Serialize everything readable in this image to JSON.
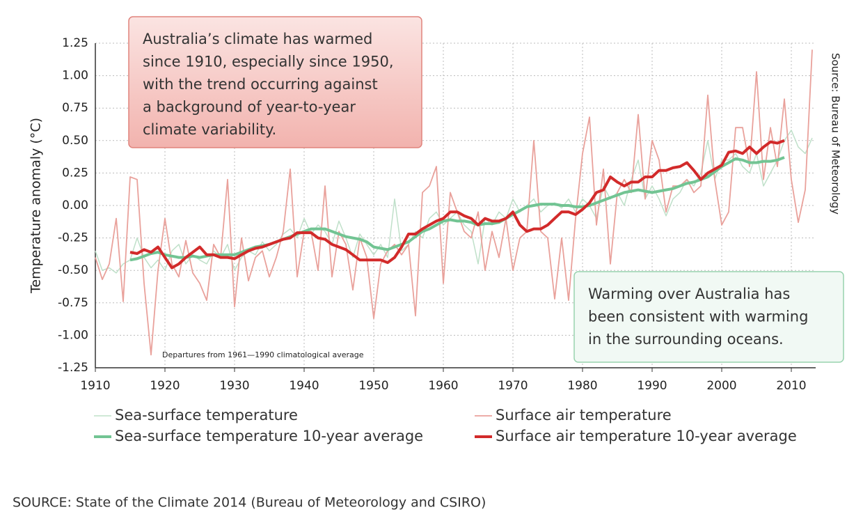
{
  "chart_data": {
    "type": "line",
    "y_label": "Temperature anomaly (°C)",
    "x": [
      1910,
      1911,
      1912,
      1913,
      1914,
      1915,
      1916,
      1917,
      1918,
      1919,
      1920,
      1921,
      1922,
      1923,
      1924,
      1925,
      1926,
      1927,
      1928,
      1929,
      1930,
      1931,
      1932,
      1933,
      1934,
      1935,
      1936,
      1937,
      1938,
      1939,
      1940,
      1941,
      1942,
      1943,
      1944,
      1945,
      1946,
      1947,
      1948,
      1949,
      1950,
      1951,
      1952,
      1953,
      1954,
      1955,
      1956,
      1957,
      1958,
      1959,
      1960,
      1961,
      1962,
      1963,
      1964,
      1965,
      1966,
      1967,
      1968,
      1969,
      1970,
      1971,
      1972,
      1973,
      1974,
      1975,
      1976,
      1977,
      1978,
      1979,
      1980,
      1981,
      1982,
      1983,
      1984,
      1985,
      1986,
      1987,
      1988,
      1989,
      1990,
      1991,
      1992,
      1993,
      1994,
      1995,
      1996,
      1997,
      1998,
      1999,
      2000,
      2001,
      2002,
      2003,
      2004,
      2005,
      2006,
      2007,
      2008,
      2009,
      2010,
      2011,
      2012,
      2013
    ],
    "series": [
      {
        "name": "Sea-surface temperature",
        "color": "#bfe0c9",
        "width": 1.5,
        "values": [
          -0.35,
          -0.5,
          -0.48,
          -0.52,
          -0.45,
          -0.42,
          -0.25,
          -0.4,
          -0.48,
          -0.42,
          -0.5,
          -0.35,
          -0.3,
          -0.45,
          -0.38,
          -0.42,
          -0.45,
          -0.35,
          -0.4,
          -0.3,
          -0.5,
          -0.4,
          -0.35,
          -0.38,
          -0.28,
          -0.35,
          -0.3,
          -0.22,
          -0.18,
          -0.25,
          -0.1,
          -0.22,
          -0.15,
          -0.2,
          -0.3,
          -0.12,
          -0.25,
          -0.4,
          -0.22,
          -0.3,
          -0.38,
          -0.3,
          -0.4,
          0.05,
          -0.35,
          -0.3,
          -0.2,
          -0.25,
          -0.1,
          -0.05,
          -0.15,
          -0.1,
          -0.05,
          -0.15,
          -0.2,
          -0.45,
          -0.1,
          -0.15,
          -0.05,
          -0.1,
          0.05,
          -0.05,
          0.0,
          0.05,
          -0.05,
          0.0,
          0.02,
          -0.02,
          0.05,
          -0.05,
          0.05,
          0.0,
          -0.1,
          0.15,
          0.05,
          0.1,
          0.0,
          0.2,
          0.35,
          0.05,
          0.15,
          0.05,
          -0.08,
          0.05,
          0.1,
          0.2,
          0.15,
          0.25,
          0.5,
          0.2,
          0.35,
          0.35,
          0.4,
          0.3,
          0.25,
          0.4,
          0.15,
          0.25,
          0.35,
          0.5,
          0.58,
          0.45,
          0.4,
          0.52
        ]
      },
      {
        "name": "Surface air temperature",
        "color": "#e9a19b",
        "width": 1.8,
        "values": [
          -0.4,
          -0.57,
          -0.45,
          -0.1,
          -0.74,
          0.22,
          0.2,
          -0.6,
          -1.15,
          -0.5,
          -0.1,
          -0.45,
          -0.55,
          -0.27,
          -0.52,
          -0.6,
          -0.73,
          -0.3,
          -0.4,
          0.2,
          -0.78,
          -0.25,
          -0.58,
          -0.4,
          -0.35,
          -0.55,
          -0.4,
          -0.2,
          0.28,
          -0.55,
          -0.2,
          -0.2,
          -0.5,
          0.15,
          -0.55,
          -0.2,
          -0.3,
          -0.65,
          -0.25,
          -0.4,
          -0.87,
          -0.45,
          -0.35,
          -0.3,
          -0.38,
          -0.3,
          -0.85,
          0.1,
          0.15,
          0.3,
          -0.6,
          0.1,
          -0.05,
          -0.2,
          -0.25,
          -0.05,
          -0.5,
          -0.2,
          -0.4,
          -0.1,
          -0.5,
          -0.25,
          -0.2,
          0.5,
          -0.2,
          -0.25,
          -0.72,
          -0.25,
          -0.73,
          -0.1,
          0.4,
          0.68,
          -0.15,
          0.28,
          -0.45,
          0.1,
          0.2,
          0.1,
          0.7,
          0.05,
          0.5,
          0.35,
          -0.05,
          0.15,
          0.15,
          0.2,
          0.1,
          0.15,
          0.85,
          0.2,
          -0.15,
          -0.05,
          0.6,
          0.6,
          0.3,
          1.03,
          0.2,
          0.6,
          0.3,
          0.82,
          0.2,
          -0.13,
          0.12,
          1.2
        ]
      },
      {
        "name": "Sea-surface temperature 10-year average",
        "color": "#72c493",
        "width": 4,
        "values": [
          null,
          null,
          null,
          null,
          null,
          -0.42,
          -0.41,
          -0.39,
          -0.37,
          -0.36,
          -0.38,
          -0.39,
          -0.4,
          -0.4,
          -0.39,
          -0.4,
          -0.39,
          -0.38,
          -0.38,
          -0.38,
          -0.38,
          -0.36,
          -0.34,
          -0.32,
          -0.31,
          -0.3,
          -0.28,
          -0.26,
          -0.24,
          -0.22,
          -0.2,
          -0.18,
          -0.18,
          -0.18,
          -0.2,
          -0.22,
          -0.24,
          -0.25,
          -0.26,
          -0.28,
          -0.32,
          -0.33,
          -0.34,
          -0.32,
          -0.3,
          -0.28,
          -0.24,
          -0.2,
          -0.18,
          -0.15,
          -0.12,
          -0.11,
          -0.12,
          -0.12,
          -0.13,
          -0.15,
          -0.14,
          -0.14,
          -0.13,
          -0.1,
          -0.07,
          -0.04,
          -0.01,
          0.0,
          0.01,
          0.01,
          0.01,
          0.0,
          0.0,
          -0.01,
          -0.01,
          0.0,
          0.02,
          0.04,
          0.06,
          0.08,
          0.1,
          0.11,
          0.12,
          0.11,
          0.1,
          0.11,
          0.12,
          0.13,
          0.15,
          0.17,
          0.18,
          0.2,
          0.22,
          0.26,
          0.3,
          0.33,
          0.36,
          0.35,
          0.33,
          0.33,
          0.34,
          0.34,
          0.35,
          0.37,
          null,
          null,
          null,
          null
        ]
      },
      {
        "name": "Surface air temperature 10-year average",
        "color": "#d22a2a",
        "width": 4,
        "values": [
          null,
          null,
          null,
          null,
          null,
          -0.36,
          -0.37,
          -0.34,
          -0.36,
          -0.32,
          -0.4,
          -0.48,
          -0.45,
          -0.4,
          -0.36,
          -0.32,
          -0.38,
          -0.38,
          -0.4,
          -0.4,
          -0.41,
          -0.38,
          -0.35,
          -0.33,
          -0.32,
          -0.3,
          -0.28,
          -0.26,
          -0.25,
          -0.21,
          -0.21,
          -0.21,
          -0.25,
          -0.26,
          -0.3,
          -0.32,
          -0.34,
          -0.38,
          -0.42,
          -0.42,
          -0.42,
          -0.42,
          -0.44,
          -0.4,
          -0.32,
          -0.22,
          -0.22,
          -0.18,
          -0.15,
          -0.12,
          -0.1,
          -0.05,
          -0.05,
          -0.08,
          -0.1,
          -0.15,
          -0.1,
          -0.12,
          -0.12,
          -0.1,
          -0.05,
          -0.15,
          -0.2,
          -0.18,
          -0.18,
          -0.15,
          -0.1,
          -0.05,
          -0.05,
          -0.07,
          -0.03,
          0.02,
          0.1,
          0.12,
          0.22,
          0.18,
          0.15,
          0.18,
          0.18,
          0.22,
          0.22,
          0.27,
          0.27,
          0.29,
          0.3,
          0.33,
          0.27,
          0.2,
          0.25,
          0.28,
          0.31,
          0.41,
          0.42,
          0.4,
          0.45,
          0.4,
          0.45,
          0.49,
          0.48,
          0.5,
          null,
          null,
          null,
          null
        ]
      }
    ],
    "xlim": [
      1910,
      2013.5
    ],
    "xticks": [
      1910,
      1920,
      1930,
      1940,
      1950,
      1960,
      1970,
      1980,
      1990,
      2000,
      2010
    ],
    "ylim": [
      -1.25,
      1.25
    ],
    "yticks": [
      -1.25,
      {
        "value": -1,
        "label": "-1.00"
      },
      -0.75,
      {
        "value": -0.5,
        "label": "-0.50"
      },
      -0.25,
      {
        "value": 0,
        "label": "0.00"
      },
      0.25,
      {
        "value": 0.5,
        "label": "0.50"
      },
      0.75,
      {
        "value": 1,
        "label": "1.00"
      },
      1.25
    ],
    "grid": true,
    "annotations": [
      {
        "lines": [
          "Australia’s climate has warmed",
          "since 1910, especially since 1950,",
          "with the trend occurring against",
          "a background of year-to-year",
          "climate variability."
        ]
      },
      {
        "lines": [
          "Warming over Australia has",
          "been consistent with warming",
          "in the surrounding oceans."
        ]
      }
    ],
    "note": "Departures from 1961—1990 climatological average",
    "side_source": "Source: Bureau of Meteorology"
  },
  "footer": "SOURCE: State of the Climate 2014 (Bureau of Meteorology and CSIRO)"
}
